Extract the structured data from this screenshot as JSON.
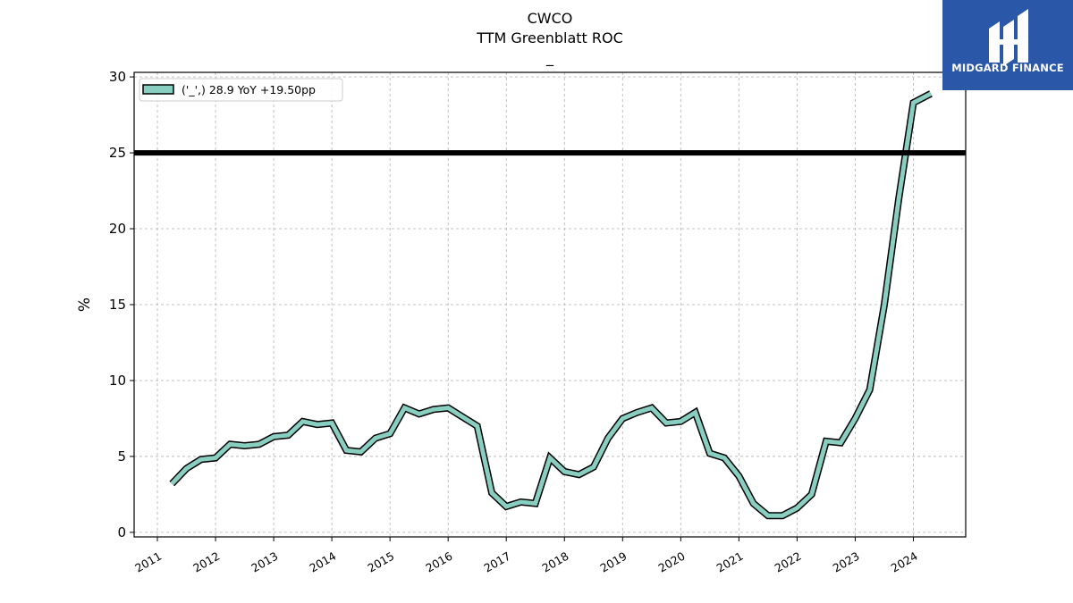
{
  "header": {
    "ticker": "CWCO",
    "metric": "TTM Greenblatt ROC",
    "subtitle": "_"
  },
  "logo": {
    "name": "MIDGARD FINANCE",
    "background": "#2a57a8"
  },
  "chart_data": {
    "type": "line",
    "ylabel": "%",
    "ylim": [
      -0.3,
      30.3
    ],
    "yticks": [
      0,
      5,
      10,
      15,
      20,
      25,
      30
    ],
    "xlim": [
      2010.6,
      2024.9
    ],
    "xticks": [
      "2011",
      "2012",
      "2013",
      "2014",
      "2015",
      "2016",
      "2017",
      "2018",
      "2019",
      "2020",
      "2021",
      "2022",
      "2023",
      "2024"
    ],
    "grid": true,
    "legend_position": "top-left",
    "legend": "('_',) 28.9 YoY +19.50pp",
    "series_color": "#88cfc1",
    "reference_line": {
      "y": 25,
      "color": "#000000"
    },
    "series": [
      {
        "x": [
          2011.25,
          2011.5,
          2011.75,
          2012.0,
          2012.25,
          2012.5,
          2012.75,
          2013.0,
          2013.25,
          2013.5,
          2013.75,
          2014.0,
          2014.25,
          2014.5,
          2014.75,
          2015.0,
          2015.25,
          2015.5,
          2015.75,
          2016.0,
          2016.25,
          2016.5,
          2016.75,
          2017.0,
          2017.25,
          2017.5,
          2017.75,
          2018.0,
          2018.25,
          2018.5,
          2018.75,
          2019.0,
          2019.25,
          2019.5,
          2019.75,
          2020.0,
          2020.25,
          2020.5,
          2020.75,
          2021.0,
          2021.25,
          2021.5,
          2021.75,
          2022.0,
          2022.25,
          2022.5,
          2022.75,
          2023.0,
          2023.25,
          2023.5,
          2023.75,
          2024.0,
          2024.3
        ],
        "y": [
          3.2,
          4.2,
          4.8,
          4.9,
          5.8,
          5.7,
          5.8,
          6.3,
          6.4,
          7.3,
          7.1,
          7.2,
          5.4,
          5.3,
          6.2,
          6.5,
          8.2,
          7.8,
          8.1,
          8.2,
          7.6,
          7.0,
          2.6,
          1.7,
          2.0,
          1.9,
          4.9,
          4.0,
          3.8,
          4.3,
          6.2,
          7.5,
          7.9,
          8.2,
          7.2,
          7.3,
          7.9,
          5.2,
          4.9,
          3.7,
          1.9,
          1.1,
          1.1,
          1.6,
          2.5,
          6.0,
          5.9,
          7.5,
          9.4,
          15.0,
          22.0,
          28.3,
          28.9
        ]
      }
    ]
  }
}
